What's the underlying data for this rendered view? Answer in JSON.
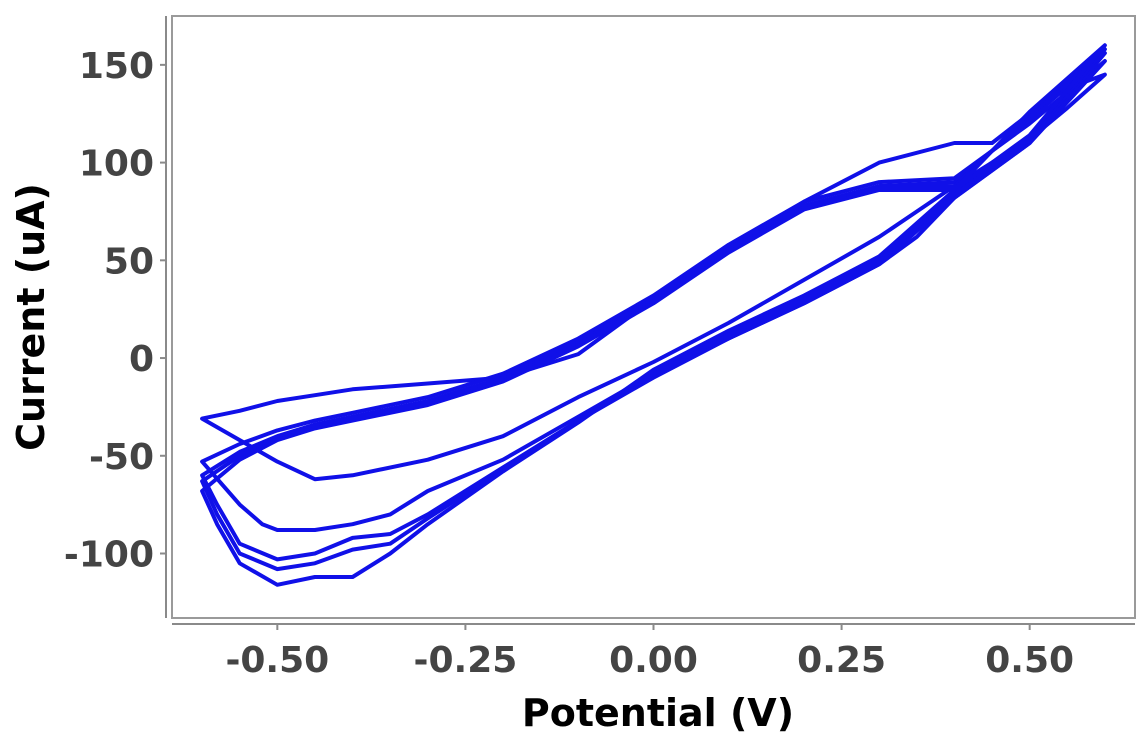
{
  "chart_data": {
    "type": "line",
    "xlabel": "Potential (V)",
    "ylabel": "Current (uA)",
    "xlim": [
      -0.64,
      0.64
    ],
    "ylim": [
      -133,
      175
    ],
    "xticks": [
      -0.5,
      -0.25,
      0.0,
      0.25,
      0.5
    ],
    "xtick_labels": [
      "-0.50",
      "-0.25",
      "0.00",
      "0.25",
      "0.50"
    ],
    "yticks": [
      -100,
      -50,
      0,
      50,
      100,
      150
    ],
    "ytick_labels": [
      "-100",
      "-50",
      "0",
      "50",
      "100",
      "150"
    ],
    "grid": false,
    "legend": "none",
    "color": "#1010e8",
    "series": [
      {
        "x": [
          -0.6,
          -0.55,
          -0.5,
          -0.45,
          -0.4,
          -0.3,
          -0.2,
          -0.1,
          0.0,
          0.1,
          0.2,
          0.3,
          0.4,
          0.45,
          0.5,
          0.55,
          0.6,
          0.55,
          0.5,
          0.45,
          0.4,
          0.35,
          0.3,
          0.2,
          0.1,
          0.0,
          -0.1,
          -0.2,
          -0.3,
          -0.4,
          -0.45,
          -0.5,
          -0.55,
          -0.6
        ],
        "y": [
          -31,
          -27,
          -22,
          -19,
          -16,
          -13,
          -10,
          2,
          30,
          57,
          80,
          100,
          110,
          110,
          125,
          138,
          145,
          128,
          112,
          100,
          88,
          75,
          62,
          40,
          18,
          -2,
          -20,
          -40,
          -52,
          -60,
          -62,
          -53,
          -42,
          -31
        ]
      },
      {
        "x": [
          -0.6,
          -0.55,
          -0.5,
          -0.45,
          -0.4,
          -0.3,
          -0.2,
          -0.1,
          0.0,
          0.1,
          0.2,
          0.3,
          0.4,
          0.5,
          0.6,
          0.5,
          0.4,
          0.35,
          0.3,
          0.25,
          0.2,
          0.1,
          0.0,
          -0.1,
          -0.2,
          -0.3,
          -0.35,
          -0.4,
          -0.45,
          -0.5,
          -0.52,
          -0.55,
          -0.6
        ],
        "y": [
          -53,
          -44,
          -37,
          -32,
          -28,
          -20,
          -8,
          10,
          32,
          58,
          80,
          90,
          92,
          120,
          152,
          110,
          82,
          62,
          48,
          38,
          28,
          10,
          -8,
          -30,
          -52,
          -68,
          -80,
          -85,
          -88,
          -88,
          -85,
          -75,
          -53
        ]
      },
      {
        "x": [
          -0.6,
          -0.55,
          -0.5,
          -0.45,
          -0.4,
          -0.3,
          -0.2,
          -0.1,
          0.0,
          0.1,
          0.2,
          0.3,
          0.4,
          0.5,
          0.6,
          0.5,
          0.4,
          0.3,
          0.25,
          0.2,
          0.1,
          0.0,
          -0.1,
          -0.2,
          -0.3,
          -0.35,
          -0.4,
          -0.45,
          -0.5,
          -0.55,
          -0.58,
          -0.6
        ],
        "y": [
          -60,
          -48,
          -40,
          -34,
          -30,
          -22,
          -10,
          8,
          30,
          56,
          78,
          88,
          90,
          122,
          156,
          110,
          82,
          48,
          38,
          28,
          10,
          -10,
          -32,
          -56,
          -80,
          -90,
          -92,
          -100,
          -103,
          -95,
          -75,
          -60
        ]
      },
      {
        "x": [
          -0.6,
          -0.55,
          -0.5,
          -0.45,
          -0.4,
          -0.3,
          -0.2,
          -0.1,
          0.0,
          0.1,
          0.2,
          0.3,
          0.4,
          0.5,
          0.6,
          0.5,
          0.4,
          0.3,
          0.25,
          0.2,
          0.1,
          0.0,
          -0.1,
          -0.2,
          -0.3,
          -0.35,
          -0.4,
          -0.45,
          -0.5,
          -0.55,
          -0.58,
          -0.6
        ],
        "y": [
          -63,
          -50,
          -41,
          -35,
          -31,
          -23,
          -11,
          7,
          29,
          55,
          77,
          87,
          88,
          124,
          158,
          112,
          84,
          50,
          40,
          30,
          12,
          -8,
          -32,
          -57,
          -82,
          -95,
          -98,
          -105,
          -108,
          -100,
          -80,
          -63
        ]
      },
      {
        "x": [
          -0.6,
          -0.55,
          -0.5,
          -0.45,
          -0.4,
          -0.3,
          -0.2,
          -0.1,
          0.0,
          0.1,
          0.2,
          0.3,
          0.4,
          0.5,
          0.6,
          0.5,
          0.4,
          0.3,
          0.25,
          0.2,
          0.1,
          0.0,
          -0.1,
          -0.2,
          -0.3,
          -0.35,
          -0.4,
          -0.45,
          -0.5,
          -0.55,
          -0.58,
          -0.6
        ],
        "y": [
          -68,
          -52,
          -42,
          -36,
          -32,
          -24,
          -12,
          6,
          28,
          54,
          76,
          86,
          86,
          126,
          160,
          114,
          86,
          52,
          42,
          32,
          14,
          -6,
          -33,
          -58,
          -85,
          -100,
          -112,
          -112,
          -116,
          -105,
          -85,
          -68
        ]
      }
    ]
  }
}
